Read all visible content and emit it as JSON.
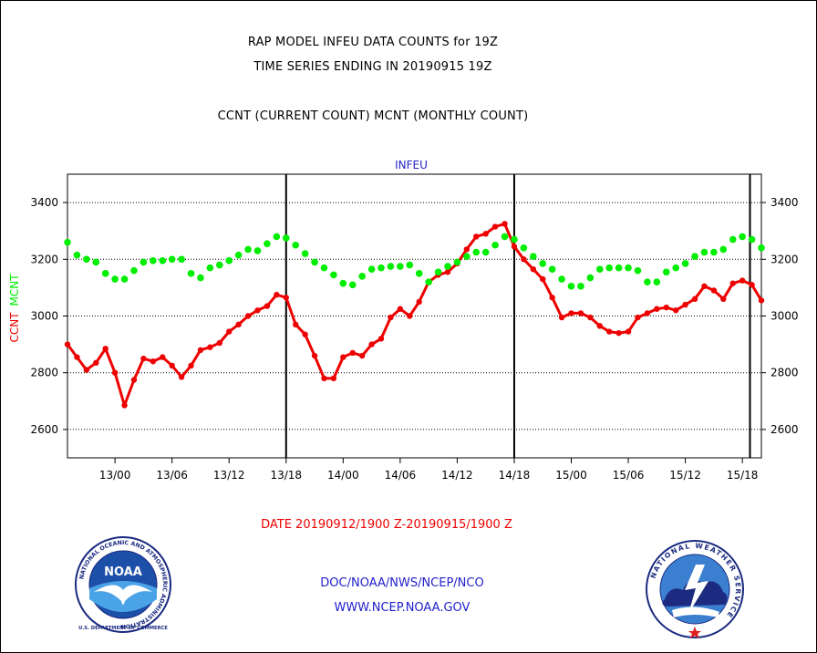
{
  "titles": {
    "line1": "RAP MODEL INFEU DATA COUNTS for 19Z",
    "line2": "TIME SERIES ENDING IN 20190915 19Z",
    "line3": "CCNT (CURRENT COUNT) MCNT (MONTHLY COUNT)"
  },
  "colors": {
    "ccnt": "#ee0000",
    "mcnt": "#00ee00",
    "date_text": "#ee0000",
    "footer_text": "#2222cc",
    "panel_label": "#2222cc"
  },
  "chart_data": {
    "type": "line",
    "title": "INFEU",
    "xlabel": "DATE 20190912/1900 Z-20190915/1900 Z",
    "ylabel_parts": [
      "CCNT",
      "MCNT"
    ],
    "ylim": [
      2500,
      3500
    ],
    "yticks": [
      2600,
      2800,
      3000,
      3200,
      3400
    ],
    "grid": true,
    "x_range_hours": [
      0,
      73
    ],
    "x_unit": "hours after 2019-09-12 19Z",
    "xtick_hours": [
      5,
      11,
      17,
      23,
      29,
      35,
      41,
      47,
      53,
      59,
      65,
      71
    ],
    "xtick_labels": [
      "13/00",
      "13/06",
      "13/12",
      "13/18",
      "14/00",
      "14/06",
      "14/12",
      "14/18",
      "15/00",
      "15/06",
      "15/12",
      "15/18"
    ],
    "day_boundary_hours": [
      23,
      47,
      71.8
    ],
    "series": [
      {
        "name": "CCNT",
        "color": "#ee0000",
        "x": [
          0,
          1,
          2,
          3,
          4,
          5,
          6,
          7,
          8,
          9,
          10,
          11,
          12,
          13,
          14,
          15,
          16,
          17,
          18,
          19,
          20,
          21,
          22,
          23,
          24,
          25,
          26,
          27,
          28,
          29,
          30,
          31,
          32,
          33,
          34,
          35,
          36,
          37,
          38,
          39,
          40,
          41,
          42,
          43,
          44,
          45,
          46,
          47,
          48,
          49,
          50,
          51,
          52,
          53,
          54,
          55,
          56,
          57,
          58,
          59,
          60,
          61,
          62,
          63,
          64,
          65,
          66,
          67,
          68,
          69,
          70,
          71,
          72,
          73
        ],
        "values": [
          2900,
          2855,
          2810,
          2835,
          2885,
          2800,
          2685,
          2775,
          2850,
          2840,
          2855,
          2825,
          2785,
          2825,
          2880,
          2890,
          2905,
          2945,
          2970,
          3000,
          3020,
          3035,
          3075,
          3065,
          2970,
          2935,
          2860,
          2780,
          2780,
          2855,
          2870,
          2860,
          2900,
          2920,
          2995,
          3025,
          3000,
          3050,
          3120,
          3145,
          3155,
          3185,
          3235,
          3280,
          3290,
          3315,
          3325,
          3245,
          3200,
          3165,
          3130,
          3065,
          2995,
          3010,
          3010,
          2995,
          2965,
          2945,
          2940,
          2945,
          2995,
          3010,
          3025,
          3030,
          3020,
          3040,
          3060,
          3105,
          3090,
          3060,
          3115,
          3125,
          3110,
          3055
        ]
      },
      {
        "name": "MCNT",
        "color": "#00ee00",
        "x": [
          0,
          1,
          2,
          3,
          4,
          5,
          6,
          7,
          8,
          9,
          10,
          11,
          12,
          13,
          14,
          15,
          16,
          17,
          18,
          19,
          20,
          21,
          22,
          23,
          24,
          25,
          26,
          27,
          28,
          29,
          30,
          31,
          32,
          33,
          34,
          35,
          36,
          37,
          38,
          39,
          40,
          41,
          42,
          43,
          44,
          45,
          46,
          47,
          48,
          49,
          50,
          51,
          52,
          53,
          54,
          55,
          56,
          57,
          58,
          59,
          60,
          61,
          62,
          63,
          64,
          65,
          66,
          67,
          68,
          69,
          70,
          71,
          72,
          73
        ],
        "values": [
          3260,
          3215,
          3200,
          3190,
          3150,
          3130,
          3130,
          3160,
          3190,
          3195,
          3195,
          3200,
          3200,
          3150,
          3135,
          3170,
          3180,
          3195,
          3215,
          3235,
          3230,
          3255,
          3280,
          3275,
          3250,
          3220,
          3190,
          3170,
          3145,
          3115,
          3110,
          3140,
          3165,
          3170,
          3175,
          3175,
          3180,
          3150,
          3120,
          3155,
          3175,
          3190,
          3210,
          3225,
          3225,
          3250,
          3280,
          3270,
          3240,
          3210,
          3185,
          3165,
          3130,
          3105,
          3105,
          3135,
          3165,
          3170,
          3170,
          3170,
          3160,
          3120,
          3120,
          3155,
          3170,
          3185,
          3210,
          3225,
          3225,
          3235,
          3270,
          3280,
          3270,
          3240
        ]
      }
    ]
  },
  "footer": {
    "line1": "DOC/NOAA/NWS/NCEP/NCO",
    "line2": "WWW.NCEP.NOAA.GOV"
  },
  "logos": {
    "noaa": {
      "inner_text": "NOAA",
      "ring_text": "NATIONAL OCEANIC AND ATMOSPHERIC ADMINISTRATION",
      "ring_bottom": "U.S. DEPARTMENT OF COMMERCE"
    },
    "nws": {
      "ring_text": "NATIONAL WEATHER SERVICE"
    }
  }
}
